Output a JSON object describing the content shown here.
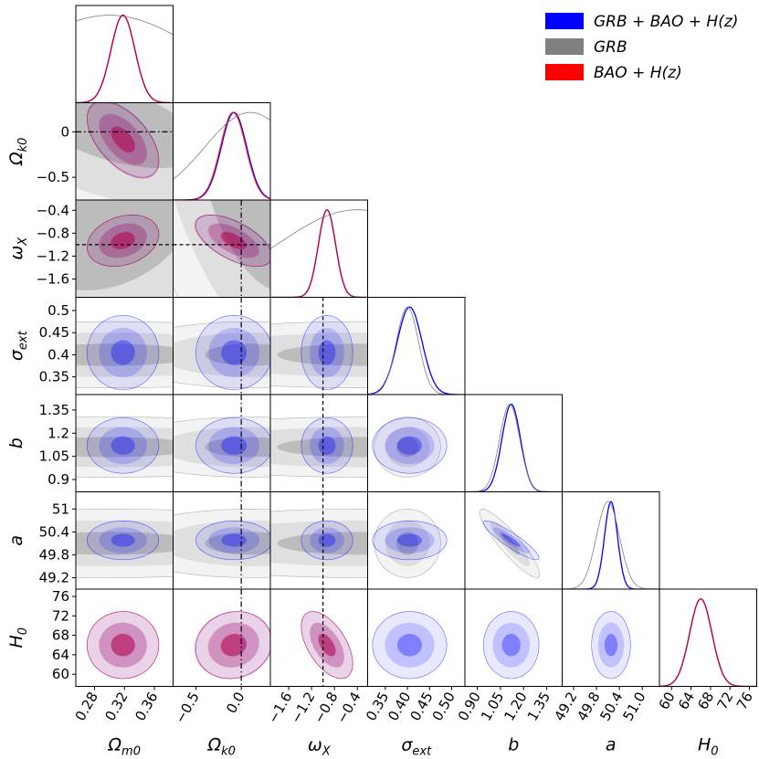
{
  "chart_data": {
    "type": "corner",
    "params": [
      {
        "key": "Om",
        "label": "Ω",
        "sub": "m0",
        "range": [
          0.255,
          0.385
        ],
        "ticks": [
          "0.28",
          "0.32",
          "0.36"
        ],
        "tickvals": [
          0.28,
          0.32,
          0.36
        ]
      },
      {
        "key": "Ok",
        "label": "Ω",
        "sub": "k0",
        "range": [
          -0.75,
          0.32
        ],
        "ticks": [
          "−0.5",
          "0.0"
        ],
        "tickvals": [
          -0.5,
          0.0
        ],
        "yticks": [
          "0",
          "−0.5"
        ],
        "ytickvals": [
          0.0,
          -0.5
        ]
      },
      {
        "key": "wx",
        "label": "ω",
        "sub": "X",
        "range": [
          -1.92,
          -0.22
        ],
        "ticks": [
          "−1.6",
          "−1.2",
          "−0.8",
          "−0.4"
        ],
        "tickvals": [
          -1.6,
          -1.2,
          -0.8,
          -0.4
        ],
        "yticks": [
          "−0.4",
          "−0.8",
          "−1.2",
          "−1.6"
        ],
        "ytickvals": [
          -0.4,
          -0.8,
          -1.2,
          -1.6
        ]
      },
      {
        "key": "sig",
        "label": "σ",
        "sub": "ext",
        "range": [
          0.31,
          0.53
        ],
        "ticks": [
          "0.35",
          "0.40",
          "0.45",
          "0.50"
        ],
        "tickvals": [
          0.35,
          0.4,
          0.45,
          0.5
        ],
        "yticks": [
          "0.5",
          "0.45",
          "0.4",
          "0.35"
        ],
        "ytickvals": [
          0.5,
          0.45,
          0.4,
          0.35
        ]
      },
      {
        "key": "b",
        "label": "b",
        "sub": "",
        "range": [
          0.82,
          1.45
        ],
        "ticks": [
          "0.90",
          "1.05",
          "1.20",
          "1.35"
        ],
        "tickvals": [
          0.9,
          1.05,
          1.2,
          1.35
        ],
        "yticks": [
          "1.35",
          "1.2",
          "1.05",
          "0.9"
        ],
        "ytickvals": [
          1.35,
          1.2,
          1.05,
          0.9
        ]
      },
      {
        "key": "a",
        "label": "a",
        "sub": "",
        "range": [
          48.9,
          51.45
        ],
        "ticks": [
          "49.2",
          "49.8",
          "50.4",
          "51.0"
        ],
        "tickvals": [
          49.2,
          49.8,
          50.4,
          51.0
        ],
        "yticks": [
          "51",
          "50.4",
          "49.8",
          "49.2"
        ],
        "ytickvals": [
          51.0,
          50.4,
          49.8,
          49.2
        ]
      },
      {
        "key": "H0",
        "label": "H",
        "sub": "0",
        "range": [
          57.5,
          77.5
        ],
        "ticks": [
          "60",
          "64",
          "68",
          "72",
          "76"
        ],
        "tickvals": [
          60,
          64,
          68,
          72,
          76
        ],
        "yticks": [
          "76",
          "72",
          "68",
          "64",
          "60"
        ],
        "ytickvals": [
          76,
          72,
          68,
          64,
          60
        ]
      }
    ],
    "series": [
      {
        "name": "GRB + BAO + H(z)",
        "color": "#0000ff",
        "params": [
          "Om",
          "Ok",
          "wx",
          "sig",
          "b",
          "a",
          "H0"
        ],
        "mean": [
          0.318,
          -0.08,
          -0.93,
          0.405,
          1.12,
          50.18,
          66.0
        ],
        "sigma": [
          0.016,
          0.14,
          0.15,
          0.028,
          0.06,
          0.17,
          2.3
        ]
      },
      {
        "name": "GRB",
        "color": "#808080",
        "params": [
          "Om",
          "Ok",
          "wx",
          "sig",
          "b",
          "a"
        ],
        "mean": [
          0.3,
          0.1,
          -0.4,
          0.4,
          1.11,
          50.1
        ],
        "sigma": [
          0.12,
          0.5,
          1.4,
          0.025,
          0.065,
          0.3
        ]
      },
      {
        "name": "BAO + H(z)",
        "color": "#ff0000",
        "params": [
          "Om",
          "Ok",
          "wx",
          "H0"
        ],
        "mean": [
          0.318,
          -0.09,
          -0.93,
          66.0
        ],
        "sigma": [
          0.016,
          0.14,
          0.15,
          2.3
        ]
      }
    ],
    "reference_lines": {
      "Ok": 0.0,
      "wx": -1.0
    },
    "legend": {
      "position": "top-right",
      "entries": [
        {
          "text": "GRB + BAO + H(z)",
          "color": "#0000ff"
        },
        {
          "text": "GRB",
          "color": "#808080"
        },
        {
          "text": "BAO + H(z)",
          "color": "#ff0000"
        }
      ]
    }
  }
}
